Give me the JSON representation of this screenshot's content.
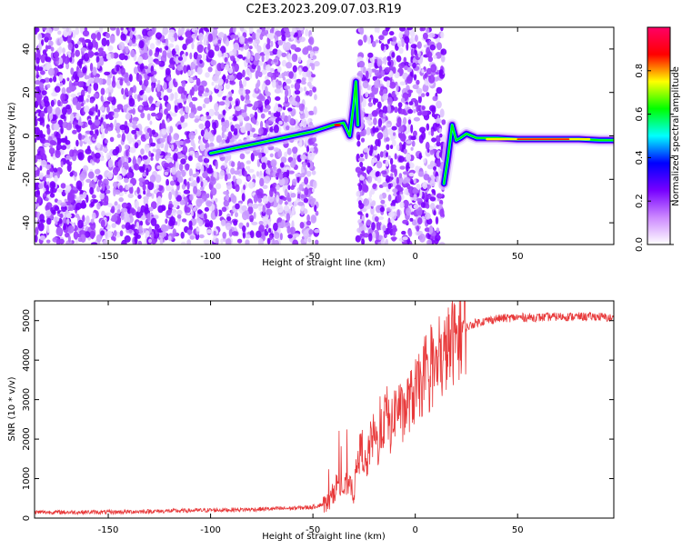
{
  "page_title": "C2E3.2023.209.07.03.R19",
  "chart_data": [
    {
      "type": "heatmap",
      "xlabel": "Height of straight line (km)",
      "ylabel": "Frequency (Hz)",
      "xlim": [
        -186,
        97
      ],
      "ylim": [
        -50,
        50
      ],
      "x_ticks": [
        -150,
        -100,
        -50,
        0,
        50
      ],
      "y_ticks": [
        -40,
        -20,
        0,
        20,
        40
      ],
      "colorbar": {
        "label": "Normalized spectral amplitude",
        "range": [
          0,
          1
        ],
        "ticks": [
          0.0,
          0.2,
          0.4,
          0.6,
          0.8
        ],
        "colors": [
          "#ffffff",
          "#cc88ff",
          "#7700ff",
          "#0000ff",
          "#00ffff",
          "#00ff00",
          "#ffff00",
          "#ff0000",
          "#ff0066"
        ]
      },
      "noise_regions": [
        [
          -186,
          -48
        ],
        [
          -28,
          14
        ]
      ],
      "signal_trace": {
        "x": [
          -100,
          -90,
          -80,
          -70,
          -60,
          -50,
          -40,
          -35,
          -32,
          -30,
          -29,
          -28
        ],
        "y": [
          -8,
          -6,
          -4,
          -2,
          0,
          2,
          5,
          6,
          0,
          15,
          25,
          5
        ]
      },
      "tone_trace": {
        "x": [
          14,
          16,
          18,
          20,
          22,
          25,
          30,
          40,
          50,
          60,
          70,
          80,
          90,
          97
        ],
        "y": [
          -22,
          -10,
          5,
          -2,
          -1,
          1,
          -1,
          -1,
          -1.5,
          -1.5,
          -1.5,
          -1.5,
          -2,
          -2
        ]
      }
    },
    {
      "type": "line",
      "xlabel": "Height of straight line (km)",
      "ylabel": "SNR (10 * v/v)",
      "xlim": [
        -186,
        97
      ],
      "ylim": [
        0,
        5500
      ],
      "x_ticks": [
        -150,
        -100,
        -50,
        0,
        50
      ],
      "y_ticks": [
        0,
        1000,
        2000,
        3000,
        4000,
        5000
      ],
      "line_color": "#e8393a",
      "series": [
        {
          "x": [
            -186,
            -150,
            -100,
            -80,
            -60,
            -50,
            -42,
            -38,
            -35,
            -32,
            -30,
            -28,
            -26,
            -24,
            -22,
            -20,
            -18,
            -16,
            -14,
            -12,
            -10,
            -8,
            -6,
            -4,
            -2,
            0,
            2,
            4,
            6,
            8,
            10,
            12,
            14,
            16,
            18,
            20,
            22,
            24,
            26,
            28,
            30,
            35,
            40,
            50,
            60,
            70,
            80,
            90,
            97
          ],
          "y": [
            150,
            150,
            200,
            220,
            250,
            280,
            400,
            900,
            700,
            1000,
            600,
            1500,
            1800,
            1200,
            1900,
            2100,
            1800,
            2300,
            2700,
            2200,
            2700,
            2900,
            2500,
            2900,
            3000,
            3200,
            3300,
            3500,
            3400,
            3700,
            3800,
            3800,
            4100,
            4300,
            4450,
            4550,
            4700,
            4800,
            4850,
            4900,
            4950,
            5000,
            5050,
            5080,
            5080,
            5100,
            5100,
            5100,
            5050
          ]
        }
      ]
    }
  ]
}
